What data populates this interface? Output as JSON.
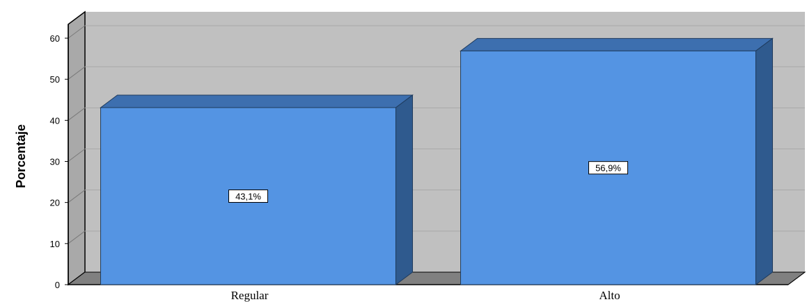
{
  "chart_data": {
    "type": "bar",
    "title": "",
    "xlabel": "",
    "ylabel": "Porcentaje",
    "categories": [
      "Regular",
      "Alto"
    ],
    "values": [
      43.1,
      56.9
    ],
    "data_labels": [
      "43,1%",
      "56,9%"
    ],
    "ylim": [
      0,
      60
    ],
    "yticks": [
      0,
      10,
      20,
      30,
      40,
      50,
      60
    ],
    "ytick_labels": [
      "0",
      "10",
      "20",
      "30",
      "40",
      "50",
      "60"
    ],
    "grid": true,
    "style": "3d",
    "colors": {
      "bar_front": "#5494E3",
      "bar_top": "#3D6FAF",
      "bar_side": "#2F5A8E",
      "plot_background": "#C0C0C0",
      "floor": "#808080",
      "gridline": "#A8A8A8"
    }
  }
}
